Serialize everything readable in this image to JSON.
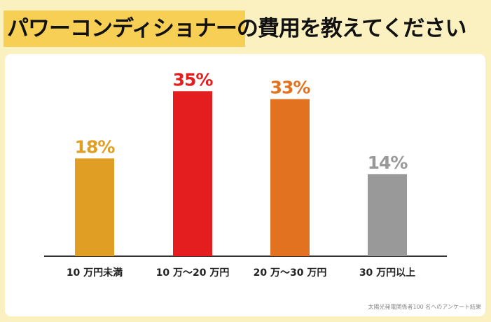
{
  "title": {
    "highlight": "パワーコンディショナー",
    "rest": "の費用を教えてください"
  },
  "note": "太陽光発電関係者100 名へのアンケート結果",
  "chart_data": {
    "type": "bar",
    "categories": [
      "10 万円未満",
      "10 万〜20 万円",
      "20 万〜30 万円",
      "30 万円以上"
    ],
    "values": [
      18,
      35,
      33,
      14
    ],
    "data_labels": [
      "18%",
      "35%",
      "33%",
      "14%"
    ],
    "colors": [
      "#E09E24",
      "#E41E1E",
      "#E37220",
      "#999999"
    ],
    "title": "",
    "xlabel": "",
    "ylabel": "",
    "grid": false
  }
}
